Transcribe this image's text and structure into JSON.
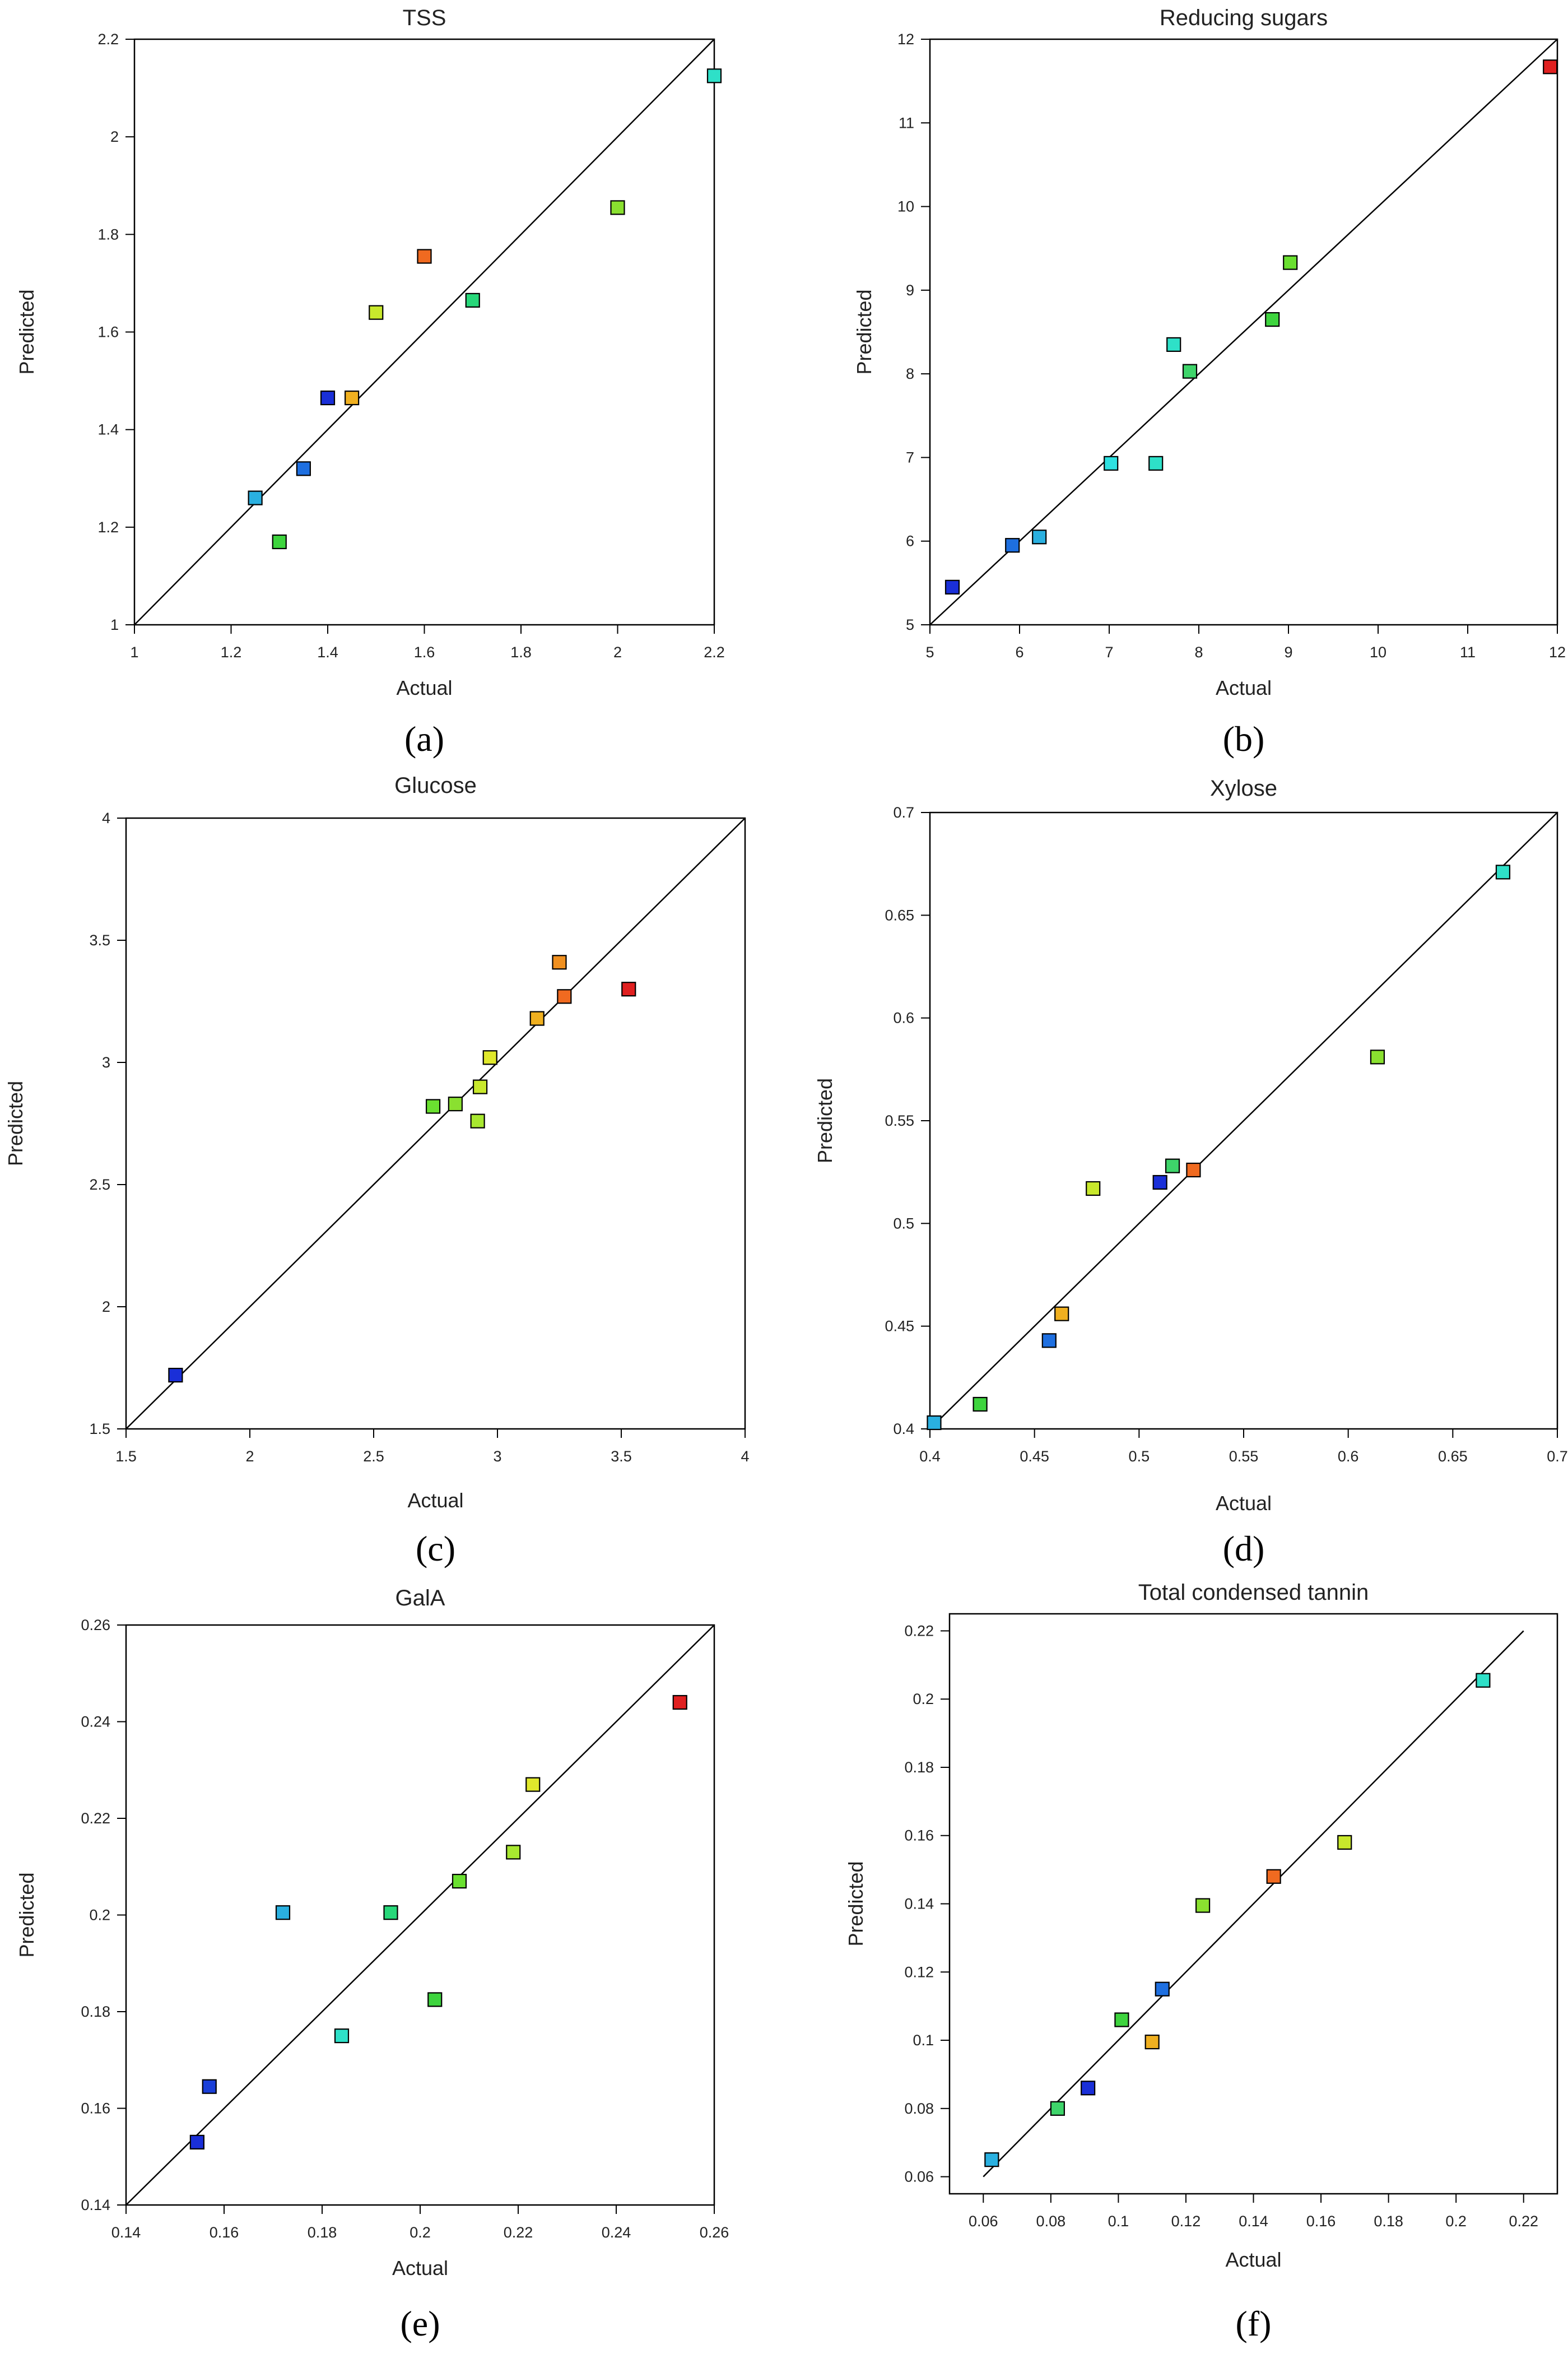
{
  "chart_data": [
    {
      "id": "a",
      "panel_label": "(a)",
      "type": "scatter",
      "title": "TSS",
      "xlabel": "Actual",
      "ylabel": "Predicted",
      "xlim": [
        1,
        2.2
      ],
      "ylim": [
        1,
        2.2
      ],
      "xticks": [
        1,
        1.2,
        1.4,
        1.6,
        1.8,
        2,
        2.2
      ],
      "yticks": [
        1,
        1.2,
        1.4,
        1.6,
        1.8,
        2,
        2.2
      ],
      "xtick_labels": [
        "1",
        "1.2",
        "1.4",
        "1.6",
        "1.8",
        "2",
        "2.2"
      ],
      "ytick_labels": [
        "1",
        "1.2",
        "1.4",
        "1.6",
        "1.8",
        "2",
        "2.2"
      ],
      "reference_line": [
        [
          1,
          1
        ],
        [
          2.2,
          2.2
        ]
      ],
      "points": [
        {
          "x": 1.25,
          "y": 1.26,
          "color": "#2ab0e0"
        },
        {
          "x": 1.3,
          "y": 1.17,
          "color": "#3ed43e"
        },
        {
          "x": 1.35,
          "y": 1.32,
          "color": "#1e6fe0"
        },
        {
          "x": 1.4,
          "y": 1.465,
          "color": "#1a2fd8"
        },
        {
          "x": 1.45,
          "y": 1.465,
          "color": "#f0b020"
        },
        {
          "x": 1.5,
          "y": 1.64,
          "color": "#c8e82c"
        },
        {
          "x": 1.6,
          "y": 1.755,
          "color": "#f06a20"
        },
        {
          "x": 1.7,
          "y": 1.665,
          "color": "#28d87a"
        },
        {
          "x": 2.0,
          "y": 1.855,
          "color": "#8ae030"
        },
        {
          "x": 2.2,
          "y": 2.125,
          "color": "#2ee0c8"
        }
      ]
    },
    {
      "id": "b",
      "panel_label": "(b)",
      "type": "scatter",
      "title": "Reducing sugars",
      "xlabel": "Actual",
      "ylabel": "Predicted",
      "xlim": [
        5,
        12
      ],
      "ylim": [
        5,
        12
      ],
      "xticks": [
        5,
        6,
        7,
        8,
        9,
        10,
        11,
        12
      ],
      "yticks": [
        5,
        6,
        7,
        8,
        9,
        10,
        11,
        12
      ],
      "xtick_labels": [
        "5",
        "6",
        "7",
        "8",
        "9",
        "10",
        "11",
        "12"
      ],
      "ytick_labels": [
        "5",
        "6",
        "7",
        "8",
        "9",
        "10",
        "11",
        "12"
      ],
      "reference_line": [
        [
          5,
          5
        ],
        [
          12,
          12
        ]
      ],
      "points": [
        {
          "x": 5.25,
          "y": 5.45,
          "color": "#1a2fd8"
        },
        {
          "x": 5.92,
          "y": 5.95,
          "color": "#1e6fe0"
        },
        {
          "x": 6.22,
          "y": 6.05,
          "color": "#2ab0e0"
        },
        {
          "x": 7.02,
          "y": 6.93,
          "color": "#2ee0e0"
        },
        {
          "x": 7.52,
          "y": 6.93,
          "color": "#2ee0c8"
        },
        {
          "x": 7.72,
          "y": 8.35,
          "color": "#2ee0c8"
        },
        {
          "x": 7.9,
          "y": 8.03,
          "color": "#3ed46a"
        },
        {
          "x": 8.82,
          "y": 8.65,
          "color": "#3ed43e"
        },
        {
          "x": 9.02,
          "y": 9.33,
          "color": "#6ae030"
        },
        {
          "x": 11.92,
          "y": 11.67,
          "color": "#e02020"
        }
      ]
    },
    {
      "id": "c",
      "panel_label": "(c)",
      "type": "scatter",
      "title": "Glucose",
      "xlabel": "Actual",
      "ylabel": "Predicted",
      "xlim": [
        1.5,
        4
      ],
      "ylim": [
        1.5,
        4
      ],
      "xticks": [
        1.5,
        2,
        2.5,
        3,
        3.5,
        4
      ],
      "yticks": [
        1.5,
        2,
        2.5,
        3,
        3.5,
        4
      ],
      "xtick_labels": [
        "1.5",
        "2",
        "2.5",
        "3",
        "3.5",
        "4"
      ],
      "ytick_labels": [
        "1.5",
        "2",
        "2.5",
        "3",
        "3.5",
        "4"
      ],
      "reference_line": [
        [
          1.5,
          1.5
        ],
        [
          4,
          4
        ]
      ],
      "points": [
        {
          "x": 1.7,
          "y": 1.72,
          "color": "#1a2fd8"
        },
        {
          "x": 2.74,
          "y": 2.82,
          "color": "#6ae030"
        },
        {
          "x": 2.83,
          "y": 2.83,
          "color": "#8ae030"
        },
        {
          "x": 2.92,
          "y": 2.76,
          "color": "#a8e830"
        },
        {
          "x": 2.93,
          "y": 2.9,
          "color": "#c8e82c"
        },
        {
          "x": 2.97,
          "y": 3.02,
          "color": "#e0e82c"
        },
        {
          "x": 3.16,
          "y": 3.18,
          "color": "#f0b020"
        },
        {
          "x": 3.25,
          "y": 3.41,
          "color": "#f09020"
        },
        {
          "x": 3.27,
          "y": 3.27,
          "color": "#f06a20"
        },
        {
          "x": 3.53,
          "y": 3.3,
          "color": "#e02020"
        }
      ]
    },
    {
      "id": "d",
      "panel_label": "(d)",
      "type": "scatter",
      "title": "Xylose",
      "xlabel": "Actual",
      "ylabel": "Predicted",
      "xlim": [
        0.4,
        0.7
      ],
      "ylim": [
        0.4,
        0.7
      ],
      "xticks": [
        0.4,
        0.45,
        0.5,
        0.55,
        0.6,
        0.65,
        0.7
      ],
      "yticks": [
        0.4,
        0.45,
        0.5,
        0.55,
        0.6,
        0.65,
        0.7
      ],
      "xtick_labels": [
        "0.4",
        "0.45",
        "0.5",
        "0.55",
        "0.6",
        "0.65",
        "0.7"
      ],
      "ytick_labels": [
        "0.4",
        "0.45",
        "0.5",
        "0.55",
        "0.6",
        "0.65",
        "0.7"
      ],
      "reference_line": [
        [
          0.4,
          0.4
        ],
        [
          0.7,
          0.7
        ]
      ],
      "points": [
        {
          "x": 0.402,
          "y": 0.403,
          "color": "#2ab0e0"
        },
        {
          "x": 0.424,
          "y": 0.412,
          "color": "#3ed43e"
        },
        {
          "x": 0.457,
          "y": 0.443,
          "color": "#1e6fe0"
        },
        {
          "x": 0.463,
          "y": 0.456,
          "color": "#f0b020"
        },
        {
          "x": 0.478,
          "y": 0.517,
          "color": "#c8e82c"
        },
        {
          "x": 0.51,
          "y": 0.52,
          "color": "#1a2fd8"
        },
        {
          "x": 0.516,
          "y": 0.528,
          "color": "#3ed46a"
        },
        {
          "x": 0.526,
          "y": 0.526,
          "color": "#f06a20"
        },
        {
          "x": 0.614,
          "y": 0.581,
          "color": "#8ae030"
        },
        {
          "x": 0.674,
          "y": 0.671,
          "color": "#2ee0c8"
        }
      ]
    },
    {
      "id": "e",
      "panel_label": "(e)",
      "type": "scatter",
      "title": "GalA",
      "xlabel": "Actual",
      "ylabel": "Predicted",
      "xlim": [
        0.14,
        0.26
      ],
      "ylim": [
        0.14,
        0.26
      ],
      "xticks": [
        0.14,
        0.16,
        0.18,
        0.2,
        0.22,
        0.24,
        0.26
      ],
      "yticks": [
        0.14,
        0.16,
        0.18,
        0.2,
        0.22,
        0.24,
        0.26
      ],
      "xtick_labels": [
        "0.14",
        "0.16",
        "0.18",
        "0.2",
        "0.22",
        "0.24",
        "0.26"
      ],
      "ytick_labels": [
        "0.14",
        "0.16",
        "0.18",
        "0.2",
        "0.22",
        "0.24",
        "0.26"
      ],
      "reference_line": [
        [
          0.14,
          0.14
        ],
        [
          0.26,
          0.26
        ]
      ],
      "points": [
        {
          "x": 0.1545,
          "y": 0.153,
          "color": "#1a2fd8"
        },
        {
          "x": 0.157,
          "y": 0.1645,
          "color": "#1a3fd8"
        },
        {
          "x": 0.172,
          "y": 0.2005,
          "color": "#2ab0e0"
        },
        {
          "x": 0.184,
          "y": 0.175,
          "color": "#2ee0c8"
        },
        {
          "x": 0.194,
          "y": 0.2005,
          "color": "#28d87a"
        },
        {
          "x": 0.203,
          "y": 0.1825,
          "color": "#3ed43e"
        },
        {
          "x": 0.208,
          "y": 0.207,
          "color": "#6ae030"
        },
        {
          "x": 0.219,
          "y": 0.213,
          "color": "#a8e830"
        },
        {
          "x": 0.223,
          "y": 0.227,
          "color": "#e0e82c"
        },
        {
          "x": 0.253,
          "y": 0.244,
          "color": "#e02020"
        }
      ]
    },
    {
      "id": "f",
      "panel_label": "(f)",
      "type": "scatter",
      "title": "Total condensed tannin",
      "xlabel": "Actual",
      "ylabel": "Predicted",
      "xlim": [
        0.05,
        0.23
      ],
      "ylim": [
        0.055,
        0.225
      ],
      "xticks": [
        0.06,
        0.08,
        0.1,
        0.12,
        0.14,
        0.16,
        0.18,
        0.2,
        0.22
      ],
      "yticks": [
        0.06,
        0.08,
        0.1,
        0.12,
        0.14,
        0.16,
        0.18,
        0.2,
        0.22
      ],
      "xtick_labels": [
        "0.06",
        "0.08",
        "0.1",
        "0.12",
        "0.14",
        "0.16",
        "0.18",
        "0.2",
        "0.22"
      ],
      "ytick_labels": [
        "0.06",
        "0.08",
        "0.1",
        "0.12",
        "0.14",
        "0.16",
        "0.18",
        "0.2",
        "0.22"
      ],
      "reference_line": [
        [
          0.06,
          0.06
        ],
        [
          0.22,
          0.22
        ]
      ],
      "points": [
        {
          "x": 0.0625,
          "y": 0.065,
          "color": "#2ab0e0"
        },
        {
          "x": 0.082,
          "y": 0.08,
          "color": "#3ed46a"
        },
        {
          "x": 0.091,
          "y": 0.086,
          "color": "#1a2fd8"
        },
        {
          "x": 0.101,
          "y": 0.106,
          "color": "#3ed43e"
        },
        {
          "x": 0.11,
          "y": 0.0995,
          "color": "#f0b020"
        },
        {
          "x": 0.113,
          "y": 0.115,
          "color": "#1e6fe0"
        },
        {
          "x": 0.125,
          "y": 0.1395,
          "color": "#8ae030"
        },
        {
          "x": 0.146,
          "y": 0.148,
          "color": "#f06a20"
        },
        {
          "x": 0.167,
          "y": 0.158,
          "color": "#c8e82c"
        },
        {
          "x": 0.208,
          "y": 0.2055,
          "color": "#2ee0c8"
        }
      ]
    }
  ]
}
